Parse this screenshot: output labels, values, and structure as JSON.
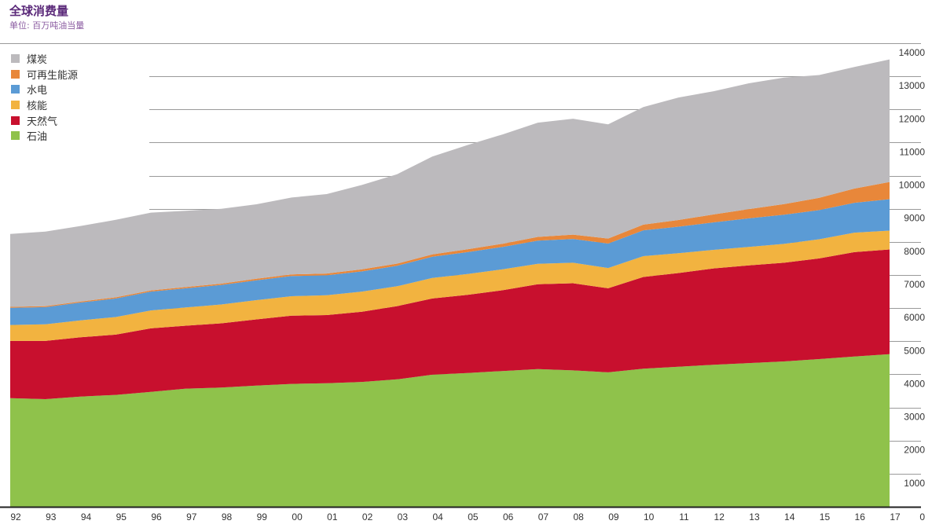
{
  "chart_data": {
    "type": "area",
    "stacked": true,
    "title": "全球消费量",
    "subtitle": "单位: 百万吨油当量",
    "xlabel": "",
    "ylabel": "",
    "ylim": [
      0,
      14000
    ],
    "yticks": [
      "0",
      "1000",
      "2000",
      "3000",
      "4000",
      "5000",
      "6000",
      "7000",
      "8000",
      "9000",
      "10000",
      "11000",
      "12000",
      "13000",
      "14000"
    ],
    "ytick_values": [
      0,
      1000,
      2000,
      3000,
      4000,
      5000,
      6000,
      7000,
      8000,
      9000,
      10000,
      11000,
      12000,
      13000,
      14000
    ],
    "categories": [
      "92",
      "93",
      "94",
      "95",
      "96",
      "97",
      "98",
      "99",
      "00",
      "01",
      "02",
      "03",
      "04",
      "05",
      "06",
      "07",
      "08",
      "09",
      "10",
      "11",
      "12",
      "13",
      "14",
      "15",
      "16",
      "17"
    ],
    "y_axis_position": "right",
    "grid": true,
    "legend_position": "top-left",
    "series": [
      {
        "name": "石油",
        "color": "#8fc24b",
        "values": [
          3280,
          3250,
          3330,
          3380,
          3470,
          3570,
          3600,
          3660,
          3710,
          3730,
          3770,
          3850,
          3990,
          4040,
          4100,
          4160,
          4120,
          4060,
          4170,
          4230,
          4290,
          4340,
          4390,
          4460,
          4540,
          4610
        ]
      },
      {
        "name": "天然气",
        "color": "#c8102e",
        "values": [
          1730,
          1760,
          1790,
          1820,
          1920,
          1900,
          1940,
          2000,
          2060,
          2060,
          2120,
          2210,
          2300,
          2360,
          2440,
          2560,
          2630,
          2540,
          2770,
          2830,
          2910,
          2950,
          2980,
          3040,
          3150,
          3160
        ]
      },
      {
        "name": "核能",
        "color": "#f2b340",
        "values": [
          480,
          500,
          510,
          530,
          540,
          550,
          570,
          580,
          590,
          600,
          610,
          600,
          620,
          630,
          630,
          620,
          620,
          610,
          630,
          600,
          560,
          560,
          570,
          580,
          590,
          570
        ]
      },
      {
        "name": "水电",
        "color": "#5b9bd5",
        "values": [
          520,
          520,
          540,
          560,
          570,
          580,
          590,
          600,
          610,
          600,
          610,
          620,
          640,
          660,
          680,
          700,
          720,
          740,
          780,
          800,
          830,
          860,
          880,
          880,
          900,
          950
        ]
      },
      {
        "name": "可再生能源",
        "color": "#e8873a",
        "values": [
          30,
          30,
          30,
          35,
          35,
          40,
          40,
          45,
          50,
          55,
          60,
          65,
          75,
          85,
          95,
          110,
          130,
          150,
          170,
          200,
          240,
          280,
          320,
          370,
          430,
          520
        ]
      },
      {
        "name": "煤炭",
        "color": "#bcbabd",
        "values": [
          2200,
          2250,
          2280,
          2340,
          2350,
          2300,
          2260,
          2250,
          2320,
          2400,
          2550,
          2700,
          2950,
          3150,
          3300,
          3450,
          3500,
          3450,
          3550,
          3700,
          3720,
          3800,
          3820,
          3710,
          3670,
          3700
        ]
      }
    ]
  }
}
